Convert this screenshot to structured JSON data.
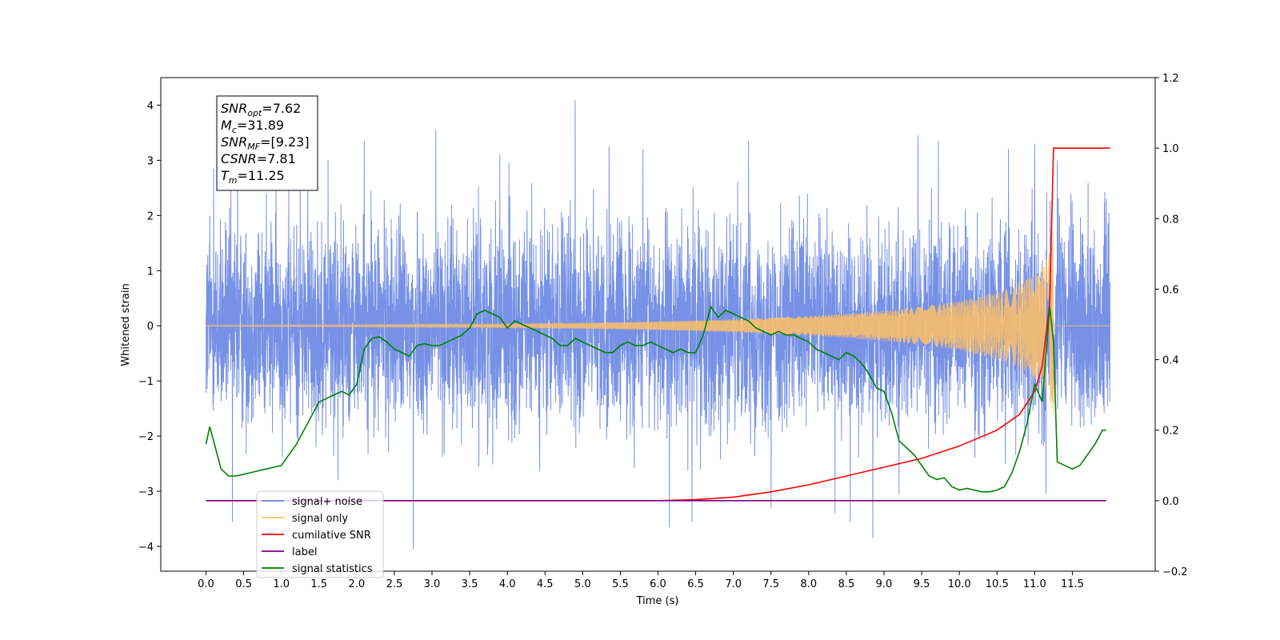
{
  "chart_data": {
    "type": "line",
    "xlabel": "Time (s)",
    "ylabel": "Whitened strain",
    "xlim": [
      -0.6,
      12.6
    ],
    "ylim": [
      -4.45,
      4.5
    ],
    "y2lim": [
      -0.2,
      1.2
    ],
    "x_ticks": [
      0.0,
      0.5,
      1.0,
      1.5,
      2.0,
      2.5,
      3.0,
      3.5,
      4.0,
      4.5,
      5.0,
      5.5,
      6.0,
      6.5,
      7.0,
      7.5,
      8.0,
      8.5,
      9.0,
      9.5,
      10.0,
      10.5,
      11.0,
      11.5
    ],
    "x_tick_labels": [
      "0.0",
      "0.5",
      "1.0",
      "1.5",
      "2.0",
      "2.5",
      "3.0",
      "3.5",
      "4.0",
      "4.5",
      "5.0",
      "5.5",
      "6.0",
      "6.5",
      "7.0",
      "7.5",
      "8.0",
      "8.5",
      "9.0",
      "9.5",
      "10.0",
      "10.5",
      "11.0",
      "11.5"
    ],
    "y_ticks": [
      -4,
      -3,
      -2,
      -1,
      0,
      1,
      2,
      3,
      4
    ],
    "y_tick_labels": [
      "−4",
      "−3",
      "−2",
      "−1",
      "0",
      "1",
      "2",
      "3",
      "4"
    ],
    "y2_ticks": [
      -0.2,
      0.0,
      0.2,
      0.4,
      0.6,
      0.8,
      1.0,
      1.2
    ],
    "y2_tick_labels": [
      "−0.2",
      "0.0",
      "0.2",
      "0.4",
      "0.6",
      "0.8",
      "1.0",
      "1.2"
    ],
    "grid": false,
    "legend_position": "bottom-left",
    "legend": [
      {
        "label": "signal+ noise",
        "color": "#6a88e4"
      },
      {
        "label": "signal only",
        "color": "#ffbf66"
      },
      {
        "label": "cumilative SNR",
        "color": "#ff0000"
      },
      {
        "label": "label",
        "color": "#800080"
      },
      {
        "label": "signal statistics",
        "color": "#008000"
      }
    ],
    "annotation_box": {
      "lines": [
        {
          "sym": "SNR",
          "sub": "opt",
          "value": "=7.62"
        },
        {
          "sym": "M",
          "sub": "c",
          "value": "=31.89"
        },
        {
          "sym": "SNR",
          "sub": "MF",
          "value": "=[9.23]"
        },
        {
          "sym": "CSNR",
          "sub": "",
          "value": "=7.81"
        },
        {
          "sym": "T",
          "sub": "m",
          "value": "=11.25"
        }
      ]
    },
    "series": [
      {
        "name": "signal+ noise",
        "axis": "left",
        "color": "#6a88e4",
        "style": "noise",
        "x_range": [
          0.0,
          12.0
        ],
        "envelope": 1.0,
        "spikes": [
          [
            0.05,
            2.0
          ],
          [
            0.1,
            2.85
          ],
          [
            0.35,
            -3.55
          ],
          [
            0.42,
            3.2
          ],
          [
            0.8,
            2.4
          ],
          [
            1.25,
            2.9
          ],
          [
            1.35,
            3.05
          ],
          [
            1.62,
            3.0
          ],
          [
            1.75,
            -2.8
          ],
          [
            2.1,
            3.35
          ],
          [
            2.75,
            -4.05
          ],
          [
            3.05,
            3.55
          ],
          [
            3.9,
            3.1
          ],
          [
            4.02,
            2.95
          ],
          [
            4.9,
            4.1
          ],
          [
            5.35,
            3.25
          ],
          [
            5.8,
            3.2
          ],
          [
            6.15,
            -3.65
          ],
          [
            6.45,
            -3.55
          ],
          [
            7.2,
            3.35
          ],
          [
            7.5,
            -3.3
          ],
          [
            8.35,
            -3.4
          ],
          [
            8.55,
            -3.55
          ],
          [
            8.85,
            -3.85
          ],
          [
            9.2,
            -3.05
          ],
          [
            9.45,
            3.45
          ],
          [
            9.72,
            3.35
          ],
          [
            10.65,
            3.2
          ],
          [
            11.0,
            3.3
          ],
          [
            11.3,
            3.0
          ],
          [
            11.15,
            -3.05
          ],
          [
            11.95,
            2.3
          ]
        ]
      },
      {
        "name": "signal only",
        "axis": "left",
        "color": "#ffbf66",
        "style": "chirp",
        "x_range": [
          0.0,
          12.0
        ],
        "merger_time": 11.25,
        "peak_amplitude": 1.8
      },
      {
        "name": "cumilative SNR",
        "axis": "right",
        "color": "#ff0000",
        "x": [
          0.0,
          6.0,
          6.5,
          7.0,
          7.5,
          8.0,
          8.5,
          9.0,
          9.5,
          10.0,
          10.5,
          10.8,
          11.0,
          11.1,
          11.2,
          11.25,
          11.3,
          12.0
        ],
        "y": [
          0.0,
          0.0,
          0.003,
          0.01,
          0.025,
          0.045,
          0.07,
          0.095,
          0.12,
          0.155,
          0.2,
          0.245,
          0.31,
          0.38,
          0.56,
          1.0,
          1.0,
          1.0
        ]
      },
      {
        "name": "label",
        "axis": "right",
        "color": "#800080",
        "x": [
          0.0,
          11.95
        ],
        "y": [
          0.0,
          0.0
        ]
      },
      {
        "name": "signal statistics",
        "axis": "right",
        "color": "#008000",
        "x": [
          0.0,
          0.05,
          0.1,
          0.2,
          0.3,
          0.4,
          0.5,
          0.6,
          0.7,
          0.8,
          0.9,
          1.0,
          1.1,
          1.2,
          1.3,
          1.4,
          1.5,
          1.6,
          1.7,
          1.8,
          1.9,
          2.0,
          2.1,
          2.2,
          2.3,
          2.4,
          2.5,
          2.6,
          2.7,
          2.8,
          2.9,
          3.0,
          3.1,
          3.2,
          3.3,
          3.4,
          3.5,
          3.6,
          3.7,
          3.8,
          3.9,
          4.0,
          4.1,
          4.2,
          4.3,
          4.4,
          4.5,
          4.6,
          4.7,
          4.8,
          4.9,
          5.0,
          5.1,
          5.2,
          5.3,
          5.4,
          5.5,
          5.6,
          5.7,
          5.8,
          5.9,
          6.0,
          6.1,
          6.2,
          6.3,
          6.4,
          6.5,
          6.6,
          6.7,
          6.8,
          6.9,
          7.0,
          7.1,
          7.2,
          7.3,
          7.4,
          7.5,
          7.6,
          7.7,
          7.8,
          7.9,
          8.0,
          8.1,
          8.2,
          8.3,
          8.4,
          8.5,
          8.6,
          8.7,
          8.8,
          8.9,
          9.0,
          9.1,
          9.2,
          9.3,
          9.4,
          9.5,
          9.6,
          9.7,
          9.8,
          9.9,
          10.0,
          10.1,
          10.2,
          10.3,
          10.4,
          10.5,
          10.6,
          10.7,
          10.8,
          10.9,
          11.0,
          11.1,
          11.2,
          11.25,
          11.3,
          11.4,
          11.5,
          11.6,
          11.7,
          11.8,
          11.9,
          11.95
        ],
        "y": [
          0.16,
          0.21,
          0.17,
          0.09,
          0.07,
          0.07,
          0.075,
          0.08,
          0.085,
          0.09,
          0.095,
          0.1,
          0.13,
          0.16,
          0.2,
          0.24,
          0.28,
          0.29,
          0.3,
          0.31,
          0.3,
          0.33,
          0.43,
          0.46,
          0.465,
          0.45,
          0.43,
          0.42,
          0.41,
          0.44,
          0.445,
          0.44,
          0.44,
          0.45,
          0.46,
          0.47,
          0.49,
          0.53,
          0.54,
          0.53,
          0.52,
          0.49,
          0.51,
          0.5,
          0.49,
          0.48,
          0.47,
          0.46,
          0.44,
          0.44,
          0.46,
          0.45,
          0.44,
          0.43,
          0.42,
          0.42,
          0.44,
          0.45,
          0.44,
          0.44,
          0.45,
          0.44,
          0.43,
          0.42,
          0.43,
          0.42,
          0.42,
          0.47,
          0.55,
          0.52,
          0.54,
          0.53,
          0.52,
          0.51,
          0.49,
          0.48,
          0.47,
          0.48,
          0.47,
          0.47,
          0.46,
          0.45,
          0.43,
          0.42,
          0.41,
          0.4,
          0.42,
          0.41,
          0.39,
          0.36,
          0.32,
          0.31,
          0.25,
          0.17,
          0.15,
          0.13,
          0.1,
          0.07,
          0.06,
          0.065,
          0.04,
          0.03,
          0.035,
          0.03,
          0.025,
          0.025,
          0.03,
          0.04,
          0.08,
          0.14,
          0.22,
          0.33,
          0.28,
          0.55,
          0.45,
          0.11,
          0.1,
          0.09,
          0.1,
          0.13,
          0.16,
          0.2,
          0.2
        ]
      }
    ]
  }
}
